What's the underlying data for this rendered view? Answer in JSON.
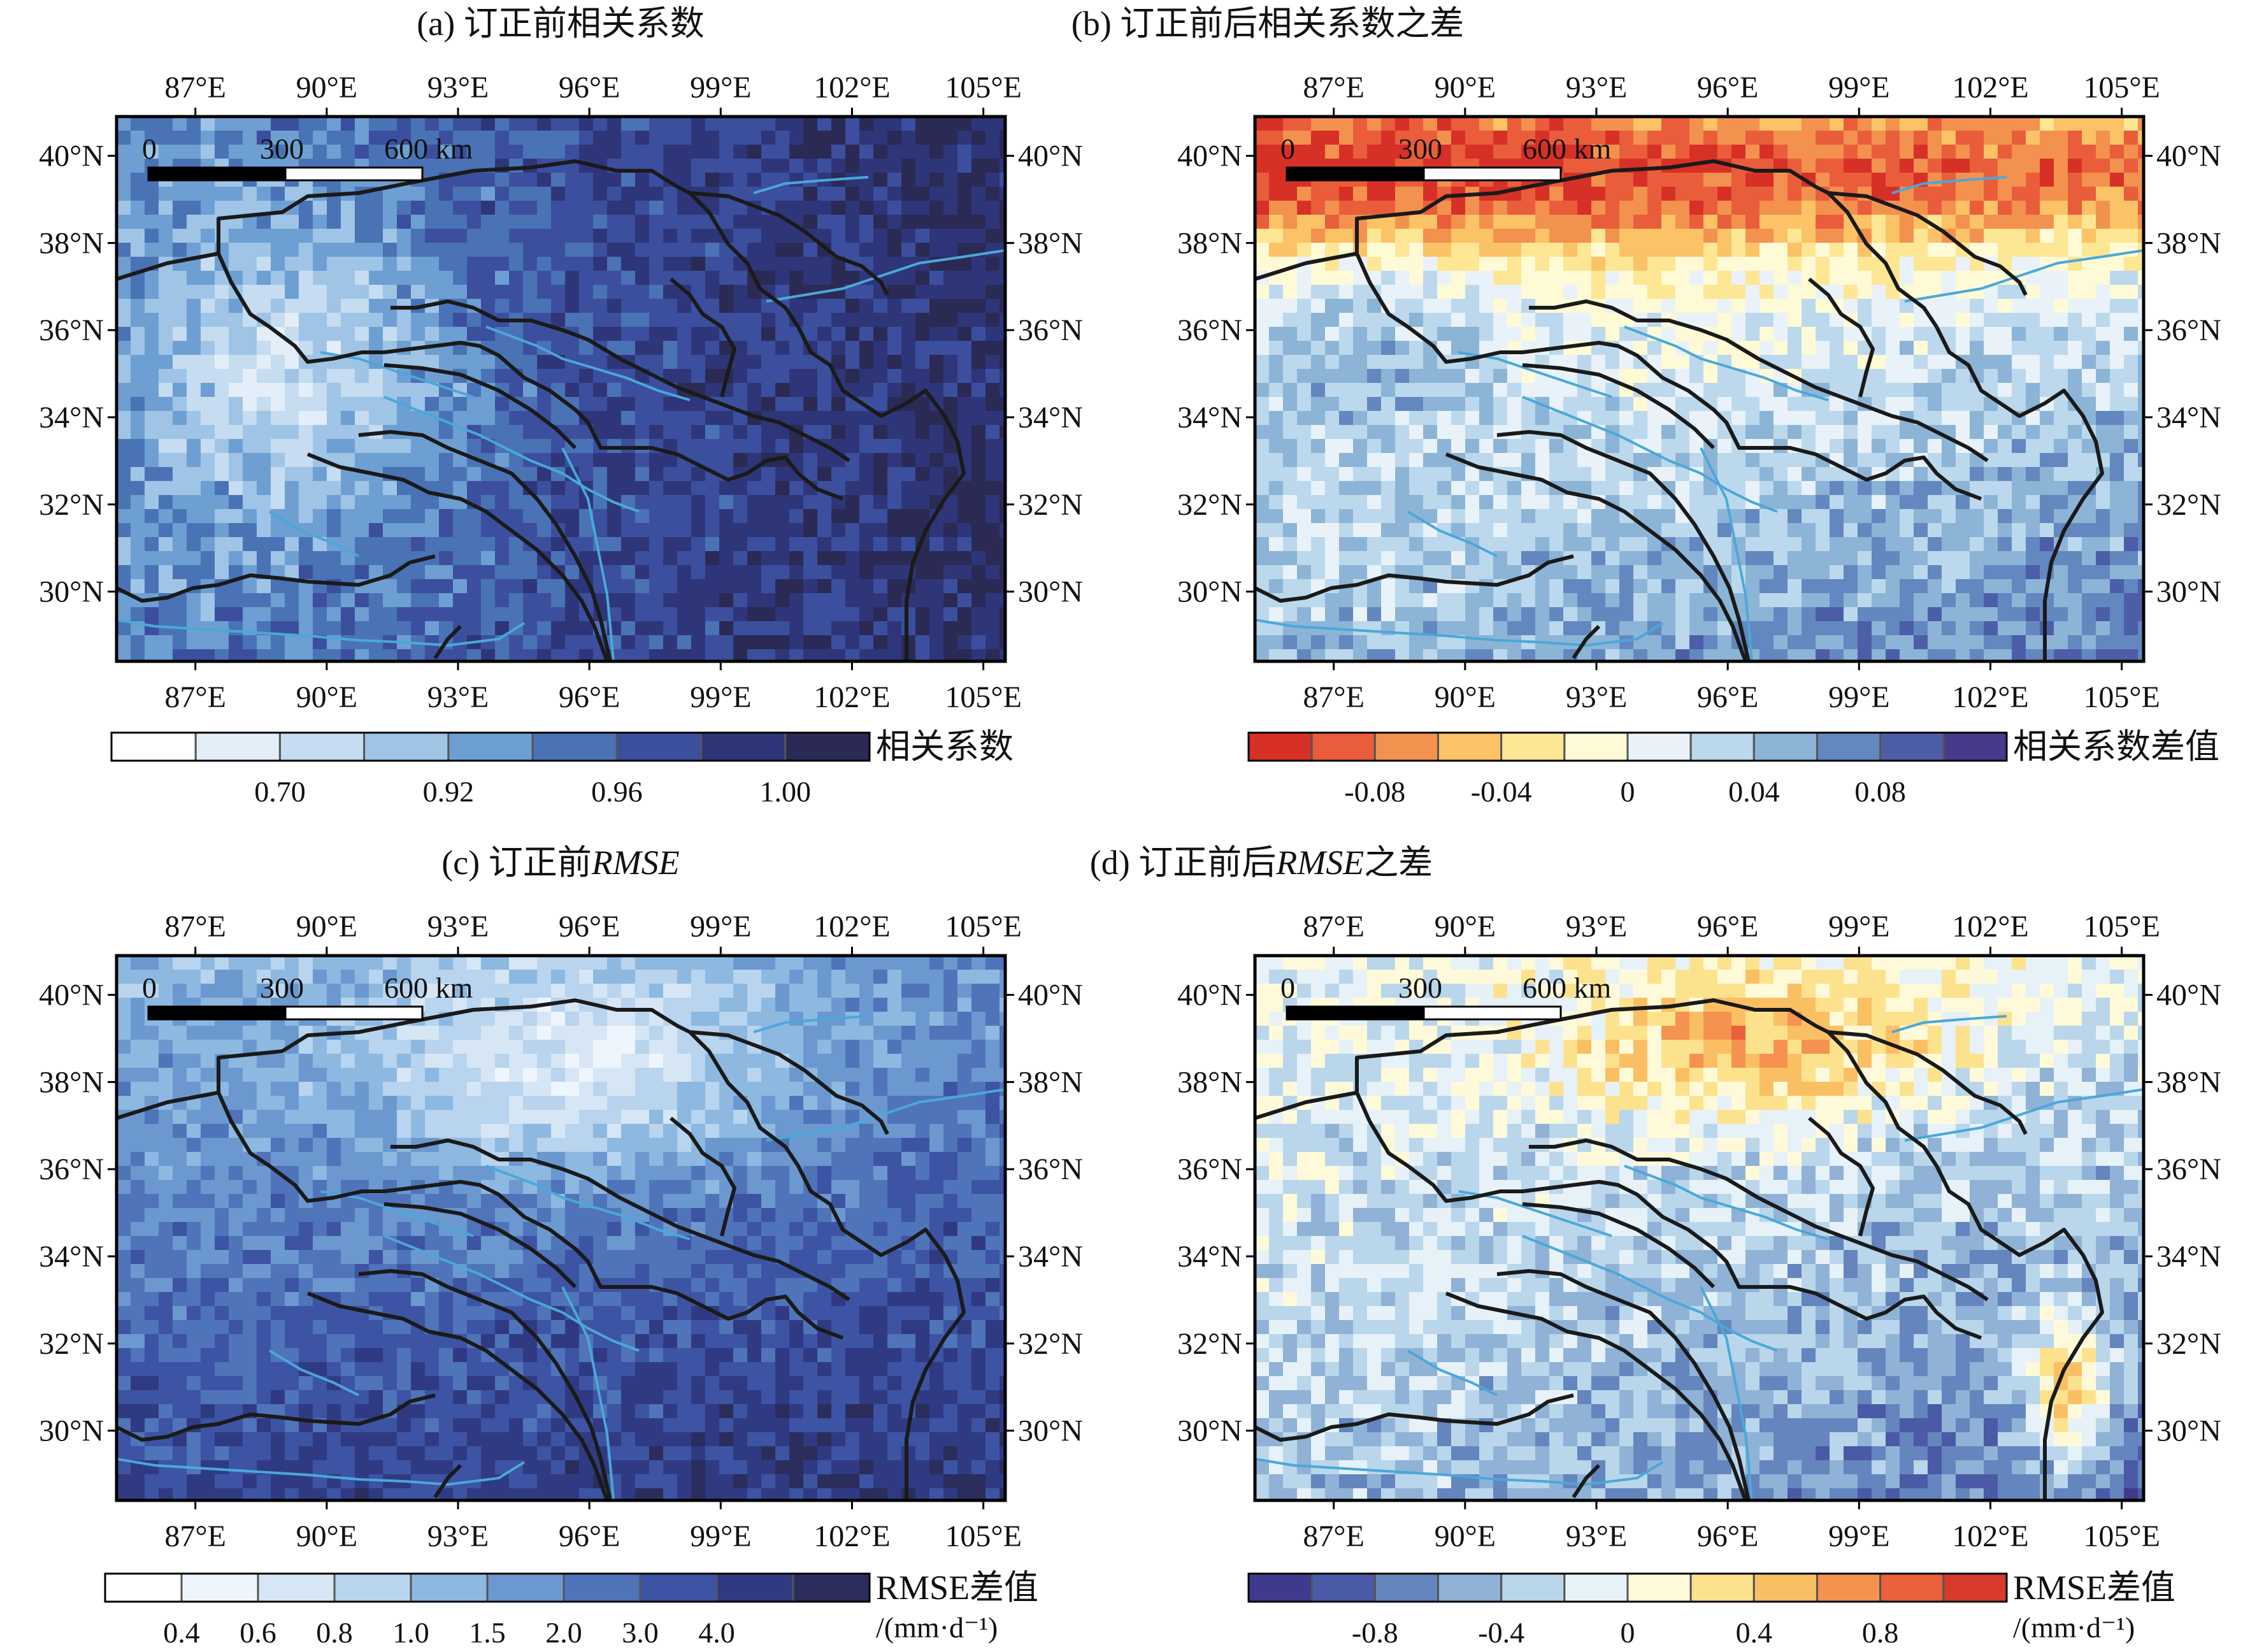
{
  "figure": {
    "panels": [
      {
        "id": "a",
        "title": "(a) 订正前相关系数",
        "title_italic": "",
        "title_suffix": "",
        "colorbar": {
          "label": "相关系数",
          "unit": "",
          "colors": [
            "#ffffff",
            "#e3eef9",
            "#c6dcf0",
            "#9fc4e6",
            "#6d9fd2",
            "#4a73b6",
            "#3b4f9e",
            "#2e3679",
            "#2a2a55"
          ],
          "tick_labels": [
            "0.70",
            "0.92",
            "0.96",
            "1.00"
          ],
          "tick_after_box": [
            2,
            4,
            6,
            8
          ]
        },
        "scale": {
          "labels": [
            "0",
            "300",
            "600 km"
          ]
        }
      },
      {
        "id": "b",
        "title": "(b) 订正前后相关系数之差",
        "title_italic": "",
        "title_suffix": "",
        "colorbar": {
          "label": "相关系数差值",
          "unit": "",
          "colors": [
            "#d73027",
            "#e95d3b",
            "#f3914f",
            "#fbc266",
            "#fde694",
            "#fefad6",
            "#e8f2f8",
            "#bcd8ec",
            "#8cb4d6",
            "#6387bf",
            "#4d5ea8",
            "#463a8c"
          ],
          "tick_labels": [
            "-0.08",
            "-0.04",
            "0",
            "0.04",
            "0.08"
          ],
          "tick_after_box": [
            2,
            4,
            6,
            8,
            10
          ]
        },
        "scale": {
          "labels": [
            "0",
            "300",
            "600 km"
          ]
        }
      },
      {
        "id": "c",
        "title": "(c) 订正前",
        "title_italic": "RMSE",
        "title_suffix": "",
        "colorbar": {
          "label": "RMSE差值",
          "unit": "/(mm·d⁻¹)",
          "colors": [
            "#ffffff",
            "#eef5fc",
            "#d6e6f5",
            "#b8d4ee",
            "#8db8e0",
            "#6c98d0",
            "#4f74b9",
            "#3d53a3",
            "#303a83",
            "#2b2d5c"
          ],
          "tick_labels": [
            "0.4",
            "0.6",
            "0.8",
            "1.0",
            "1.5",
            "2.0",
            "3.0",
            "4.0"
          ],
          "tick_after_box": [
            1,
            2,
            3,
            4,
            5,
            6,
            7,
            8
          ]
        },
        "scale": {
          "labels": [
            "0",
            "300",
            "600 km"
          ]
        }
      },
      {
        "id": "d",
        "title": "(d) 订正前后",
        "title_italic": "RMSE",
        "title_suffix": "之差",
        "colorbar": {
          "label": "RMSE差值",
          "unit": "/(mm·d⁻¹)",
          "colors": [
            "#3f3a8e",
            "#4a5aa6",
            "#6485bd",
            "#8fb2d6",
            "#b9d6eb",
            "#e6f1f8",
            "#fefad9",
            "#fde28e",
            "#fbbf63",
            "#f5924f",
            "#e9603b",
            "#d83a2c"
          ],
          "tick_labels": [
            "-0.8",
            "-0.4",
            "0",
            "0.4",
            "0.8"
          ],
          "tick_after_box": [
            2,
            4,
            6,
            8,
            10
          ]
        },
        "scale": {
          "labels": [
            "0",
            "300",
            "600 km"
          ]
        }
      }
    ],
    "lon_ticks": [
      "87°E",
      "90°E",
      "93°E",
      "96°E",
      "99°E",
      "102°E",
      "105°E"
    ],
    "lat_ticks": [
      "40°N",
      "38°N",
      "36°N",
      "34°N",
      "32°N",
      "30°N"
    ],
    "lon_values": [
      87,
      90,
      93,
      96,
      99,
      102,
      105
    ],
    "lat_values": [
      40,
      38,
      36,
      34,
      32,
      30
    ],
    "extent": {
      "lon": [
        85.2,
        105.5
      ],
      "lat": [
        28.4,
        40.9
      ]
    },
    "colors": {
      "river": "#4aa8d8",
      "boundary": "#1a1a1a",
      "frame": "#000000"
    }
  }
}
